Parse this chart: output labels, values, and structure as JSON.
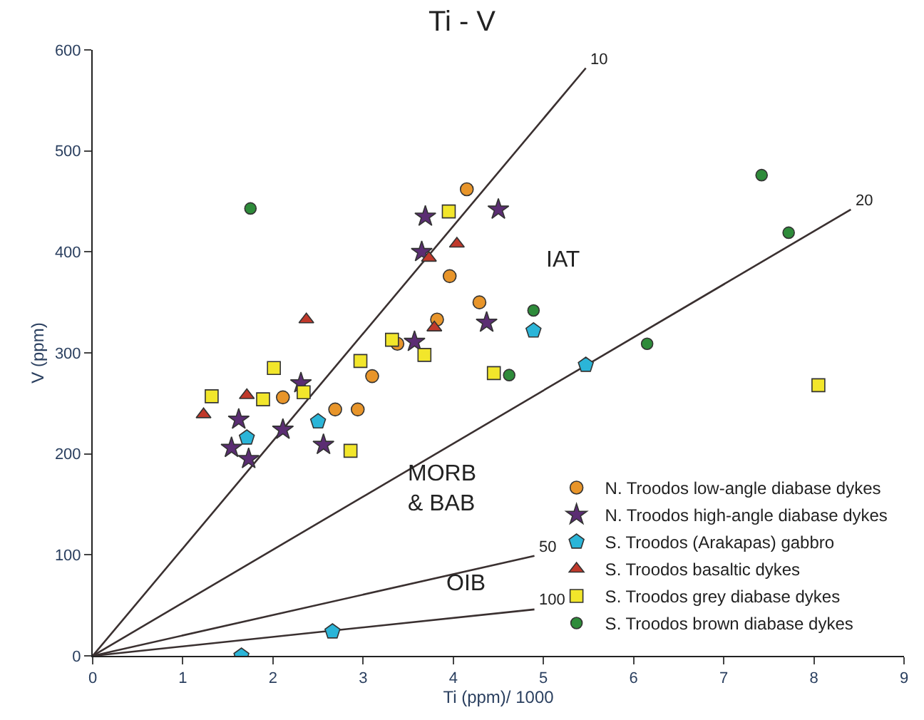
{
  "chart_data": {
    "type": "scatter",
    "title": "Ti - V",
    "xlabel": "Ti (ppm)/ 1000",
    "ylabel": "V (ppm)",
    "xlim": [
      0,
      9
    ],
    "xticks": [
      0,
      1,
      2,
      3,
      4,
      5,
      6,
      7,
      8,
      9
    ],
    "ylim": [
      0,
      600
    ],
    "yticks": [
      0,
      100,
      200,
      300,
      400,
      500,
      600
    ],
    "legend": "bottom right",
    "series": [
      {
        "type": "line",
        "color": "#3a3030",
        "x": [
          0,
          5.47
        ],
        "values": [
          0,
          582
        ],
        "marker": "none"
      },
      {
        "type": "line",
        "color": "#3a3030",
        "x": [
          0,
          8.41
        ],
        "values": [
          0,
          442
        ],
        "marker": "none"
      },
      {
        "type": "line",
        "color": "#3a3030",
        "x": [
          0,
          4.9
        ],
        "values": [
          0,
          99
        ],
        "marker": "none"
      },
      {
        "type": "line",
        "color": "#3a3030",
        "x": [
          0,
          4.9
        ],
        "values": [
          0,
          46
        ],
        "marker": "none"
      },
      {
        "name": "N. Troodos low-angle diabase dykes",
        "color": "#e8952a",
        "marker": "circle",
        "x": [
          4.15,
          3.96,
          4.29,
          3.82,
          3.38,
          3.1,
          2.11,
          2.69,
          2.94
        ],
        "values": [
          462,
          376,
          350,
          333,
          309,
          277,
          256,
          244,
          244
        ]
      },
      {
        "name": "N. Troodos high-angle diabase dykes",
        "color": "#5b2d73",
        "marker": "star",
        "x": [
          3.69,
          4.5,
          3.65,
          4.37,
          3.57,
          2.31,
          1.62,
          2.11,
          2.56,
          1.54,
          1.73
        ],
        "values": [
          435,
          442,
          400,
          330,
          311,
          270,
          234,
          224,
          209,
          206,
          195
        ]
      },
      {
        "name": "S. Troodos (Arakapas) gabbro",
        "color": "#2bb5d8",
        "x": [
          2.5,
          1.71,
          4.89,
          5.47,
          2.66,
          1.65
        ],
        "values": [
          232,
          216,
          322,
          288,
          24,
          0
        ]
      },
      {
        "name": "S. Troodos basaltic dykes",
        "color": "#c0392b",
        "marker": "triangle",
        "x": [
          1.23,
          1.71,
          2.37,
          3.73,
          4.04,
          3.79
        ],
        "values": [
          239,
          258,
          333,
          394,
          408,
          325
        ]
      },
      {
        "name": "S. Troodos grey diabase dykes",
        "color": "#f2e62b",
        "marker": "square",
        "x": [
          1.32,
          2.01,
          1.89,
          2.34,
          2.97,
          3.32,
          3.68,
          4.45,
          2.86,
          3.95,
          8.05
        ],
        "values": [
          257,
          285,
          254,
          261,
          292,
          313,
          298,
          280,
          203,
          440,
          268
        ]
      },
      {
        "name": "S. Troodos brown diabase dykes",
        "color": "#2e8b3a",
        "marker": "circle",
        "x": [
          1.75,
          4.89,
          6.15,
          7.42,
          7.72,
          4.62
        ],
        "values": [
          443,
          342,
          309,
          476,
          419,
          278
        ]
      }
    ],
    "annotations": [
      {
        "text": "10",
        "x": 5.47,
        "y": 582
      },
      {
        "text": "20",
        "x": 8.41,
        "y": 442
      },
      {
        "text": "50",
        "x": 4.9,
        "y": 99
      },
      {
        "text": "100",
        "x": 4.9,
        "y": 46
      },
      "IAT",
      "MORB\n& BAB",
      "OIB"
    ]
  }
}
